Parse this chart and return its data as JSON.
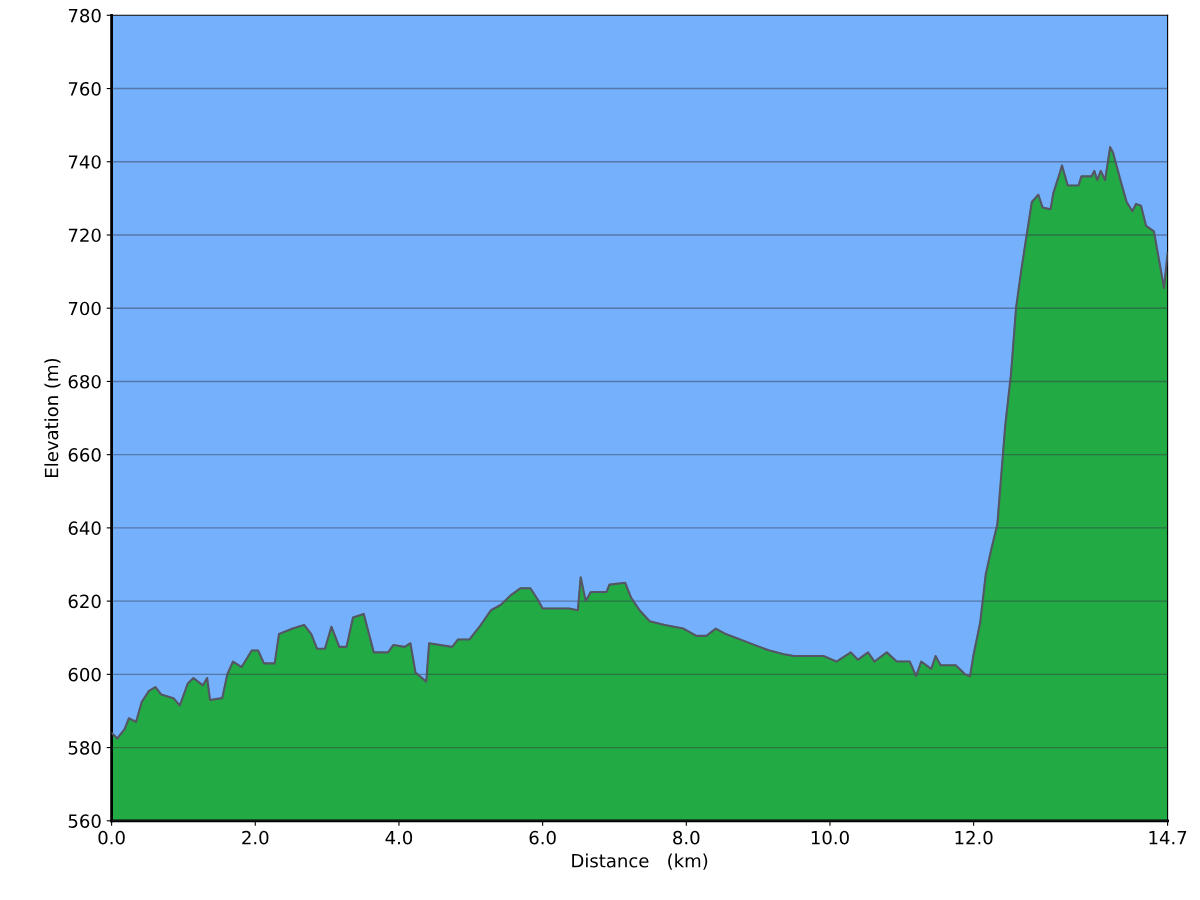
{
  "chart_data": {
    "type": "area",
    "xlabel": "Distance   (km)",
    "ylabel": "Elevation (m)",
    "xlim": [
      0,
      14.7
    ],
    "ylim": [
      560,
      780
    ],
    "xticks": [
      {
        "value": 0,
        "label": "0.0"
      },
      {
        "value": 2,
        "label": "2.0"
      },
      {
        "value": 4,
        "label": "4.0"
      },
      {
        "value": 6,
        "label": "6.0"
      },
      {
        "value": 8,
        "label": "8.0"
      },
      {
        "value": 10,
        "label": "10.0"
      },
      {
        "value": 12,
        "label": "12.0"
      },
      {
        "value": 14.7,
        "label": "14.7"
      }
    ],
    "yticks": [
      560,
      580,
      600,
      620,
      640,
      660,
      680,
      700,
      720,
      740,
      760,
      780
    ],
    "grid": "y",
    "series": [
      {
        "color": "#22aa44",
        "x": [
          0,
          0.08,
          0.18,
          0.24,
          0.34,
          0.42,
          0.52,
          0.61,
          0.69,
          0.86,
          0.95,
          1.06,
          1.14,
          1.27,
          1.33,
          1.37,
          1.54,
          1.61,
          1.69,
          1.81,
          1.95,
          2.04,
          2.12,
          2.27,
          2.33,
          2.52,
          2.68,
          2.78,
          2.86,
          2.97,
          3.06,
          3.17,
          3.27,
          3.36,
          3.51,
          3.65,
          3.85,
          3.92,
          4.08,
          4.16,
          4.23,
          4.38,
          4.42,
          4.74,
          4.82,
          4.98,
          5.14,
          5.28,
          5.42,
          5.55,
          5.69,
          5.83,
          5.93,
          6.0,
          6.12,
          6.37,
          6.49,
          6.53,
          6.6,
          6.67,
          6.89,
          6.93,
          7.15,
          7.23,
          7.35,
          7.49,
          7.7,
          7.96,
          8.14,
          8.28,
          8.41,
          8.55,
          8.82,
          9.02,
          9.16,
          9.36,
          9.5,
          9.77,
          9.91,
          10.09,
          10.29,
          10.39,
          10.53,
          10.62,
          10.79,
          10.93,
          11.11,
          11.2,
          11.27,
          11.41,
          11.47,
          11.54,
          11.75,
          11.88,
          11.95,
          12.0,
          12.09,
          12.17,
          12.25,
          12.33,
          12.44,
          12.52,
          12.59,
          12.66,
          12.73,
          12.81,
          12.9,
          12.96,
          13.07,
          13.11,
          13.2,
          13.23,
          13.31,
          13.46,
          13.5,
          13.64,
          13.68,
          13.72,
          13.77,
          13.83,
          13.9,
          13.94,
          14.05,
          14.13,
          14.21,
          14.26,
          14.33,
          14.4,
          14.51,
          14.65,
          14.7
        ],
        "values": [
          584,
          582.5,
          585,
          588,
          587,
          592.5,
          595.5,
          596.5,
          594.5,
          593.5,
          591.5,
          597.5,
          599,
          597,
          599,
          593,
          593.5,
          600,
          603.5,
          602,
          606.5,
          606.5,
          603,
          603,
          611,
          612.5,
          613.5,
          611,
          607,
          607,
          613,
          607.5,
          607.5,
          615.5,
          616.5,
          606,
          606,
          608,
          607.5,
          608.5,
          600.5,
          598,
          608.5,
          607.5,
          609.5,
          609.5,
          613.5,
          617.5,
          619,
          621.5,
          623.5,
          623.5,
          620.5,
          618,
          618,
          618,
          617.5,
          626.5,
          620,
          622.5,
          622.5,
          624.5,
          625,
          621,
          617.5,
          614.5,
          613.5,
          612.5,
          610.5,
          610.5,
          612.5,
          611,
          609,
          607.5,
          606.5,
          605.5,
          605,
          605,
          605,
          603.5,
          606,
          604,
          606,
          603.5,
          606,
          603.5,
          603.5,
          599.5,
          603.5,
          601.5,
          605,
          602.5,
          602.5,
          600,
          599.5,
          605.5,
          614,
          627.5,
          634.5,
          641,
          668,
          682,
          700,
          710,
          719,
          729,
          731,
          727.5,
          727,
          731.5,
          737,
          739,
          733.5,
          733.5,
          736,
          736,
          737.5,
          735,
          737.5,
          735,
          744,
          742.5,
          734.5,
          729,
          726.5,
          728.5,
          728,
          722.5,
          721,
          705.5,
          715
        ]
      }
    ]
  }
}
